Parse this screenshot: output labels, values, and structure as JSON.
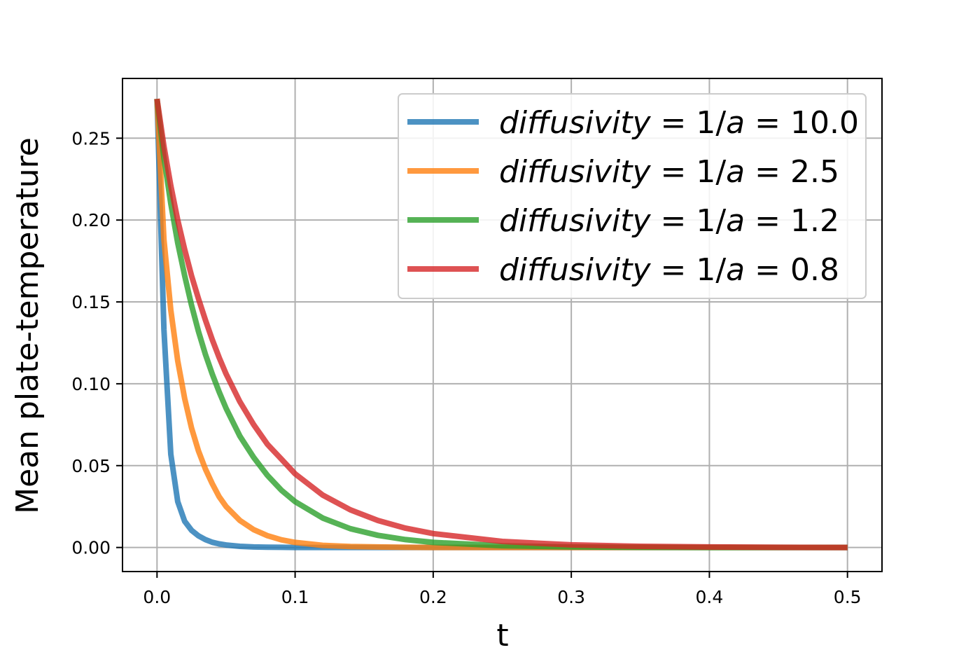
{
  "chart_data": {
    "type": "line",
    "xlabel": "t",
    "ylabel": "Mean plate-temperature",
    "xlim": [
      -0.025,
      0.525
    ],
    "ylim": [
      -0.0147,
      0.2865
    ],
    "xticks": [
      0.0,
      0.1,
      0.2,
      0.3,
      0.4,
      0.5
    ],
    "xtick_labels": [
      "0.0",
      "0.1",
      "0.2",
      "0.3",
      "0.4",
      "0.5"
    ],
    "yticks": [
      0.0,
      0.05,
      0.1,
      0.15,
      0.2,
      0.25
    ],
    "ytick_labels": [
      "0.00",
      "0.05",
      "0.10",
      "0.15",
      "0.20",
      "0.25"
    ],
    "grid": true,
    "legend_position": "top-right",
    "x": [
      0.0,
      0.005,
      0.01,
      0.015,
      0.02,
      0.025,
      0.03,
      0.035,
      0.04,
      0.045,
      0.05,
      0.06,
      0.07,
      0.08,
      0.09,
      0.1,
      0.12,
      0.14,
      0.16,
      0.18,
      0.2,
      0.25,
      0.3,
      0.35,
      0.4,
      0.45,
      0.5
    ],
    "series": [
      {
        "name": "diffusivity = 1/a = 10.0",
        "label_prefix": "diffusivity",
        "label_mid": " = 1/",
        "label_var": "a",
        "label_suffix": " = 10.0",
        "color": "#1f77b4",
        "values": [
          0.274,
          0.133,
          0.057,
          0.028,
          0.016,
          0.0105,
          0.0071,
          0.0048,
          0.0032,
          0.0022,
          0.0015,
          0.0007,
          0.0003,
          0.0002,
          0.0001,
          0.0,
          0.0,
          0.0,
          0.0,
          0.0,
          0.0,
          0.0,
          0.0,
          0.0,
          0.0,
          0.0,
          0.0
        ]
      },
      {
        "name": "diffusivity = 1/a = 2.5",
        "label_prefix": "diffusivity",
        "label_mid": " = 1/",
        "label_var": "a",
        "label_suffix": " = 2.5",
        "color": "#ff7f0e",
        "values": [
          0.274,
          0.188,
          0.145,
          0.114,
          0.091,
          0.073,
          0.059,
          0.048,
          0.039,
          0.031,
          0.025,
          0.0165,
          0.0109,
          0.0072,
          0.0047,
          0.0031,
          0.0013,
          0.0006,
          0.0003,
          0.0001,
          0.0,
          0.0,
          0.0,
          0.0,
          0.0,
          0.0,
          0.0
        ]
      },
      {
        "name": "diffusivity = 1/a = 1.2",
        "label_prefix": "diffusivity",
        "label_mid": " = 1/",
        "label_var": "a",
        "label_suffix": " = 1.2",
        "color": "#2ca02c",
        "values": [
          0.274,
          0.238,
          0.21,
          0.186,
          0.166,
          0.148,
          0.132,
          0.118,
          0.106,
          0.095,
          0.085,
          0.068,
          0.055,
          0.044,
          0.035,
          0.028,
          0.018,
          0.0115,
          0.0074,
          0.0048,
          0.0031,
          0.0011,
          0.0004,
          0.0001,
          0.0,
          0.0,
          0.0
        ]
      },
      {
        "name": "diffusivity = 1/a = 0.8",
        "label_prefix": "diffusivity",
        "label_mid": " = 1/",
        "label_var": "a",
        "label_suffix": " = 0.8",
        "color": "#d62728",
        "values": [
          0.274,
          0.245,
          0.221,
          0.2,
          0.182,
          0.166,
          0.152,
          0.139,
          0.127,
          0.116,
          0.106,
          0.089,
          0.075,
          0.063,
          0.054,
          0.045,
          0.032,
          0.023,
          0.0165,
          0.0118,
          0.0085,
          0.0037,
          0.0016,
          0.0007,
          0.0003,
          0.0001,
          0.0
        ]
      }
    ]
  }
}
